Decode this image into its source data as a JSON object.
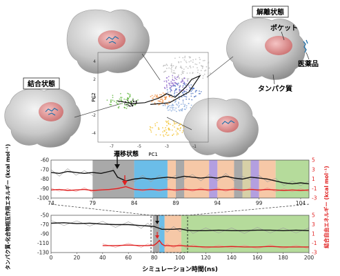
{
  "labels": {
    "bound_state": "結合状態",
    "dissociated_state": "解離状態",
    "pocket": "ポケット",
    "drug": "医薬品",
    "protein": "タンパク質",
    "transition_state": "遷移状態",
    "pc1": "PC1",
    "pc2": "PC2",
    "y_left": "タンパク質-化合物相互作用エネルギー (kcal mol⁻¹)",
    "y_right": "結合自由エネルギー (kcal mol⁻¹)",
    "x_label": "シミュレーション時間(ns)"
  },
  "colors": {
    "black_series": "#111111",
    "red_series": "#e02020",
    "gray_band": "#8c8c8c",
    "blue_band": "#3aa7e0",
    "orange_band": "#f3b58a",
    "purple_band": "#9a7fd6",
    "olive_band": "#c9c08a",
    "green_band": "#9ccf7a",
    "pocket": "#e8a0a0"
  },
  "chart_data": [
    {
      "type": "scatter",
      "name": "pca",
      "xlabel": "PC1",
      "ylabel": "PC2",
      "xticks": [
        "-7",
        "-5",
        "-3",
        "-1"
      ],
      "yticks": [
        "4",
        "2",
        "0",
        "-2",
        "-4"
      ],
      "xlim": [
        -8,
        0
      ],
      "ylim": [
        -5,
        5
      ]
    },
    {
      "type": "line",
      "name": "zoom-panel",
      "xlim": [
        74,
        105
      ],
      "xticks": [
        "74",
        "79",
        "84",
        "89",
        "94",
        "99",
        "104"
      ],
      "yticks_left": [
        "-60",
        "-70",
        "-80",
        "-90",
        "-100"
      ],
      "yticks_right": [
        "5",
        "3",
        "1",
        "-1",
        "-3"
      ],
      "ylim_left": [
        -100,
        -60
      ],
      "ylim_right": [
        -3,
        5
      ],
      "bands": [
        {
          "from": 79,
          "to": 84,
          "color": "gray"
        },
        {
          "from": 84,
          "to": 88,
          "color": "blue"
        },
        {
          "from": 88,
          "to": 89,
          "color": "orange"
        },
        {
          "from": 89,
          "to": 90,
          "color": "gray"
        },
        {
          "from": 90,
          "to": 93,
          "color": "orange"
        },
        {
          "from": 93,
          "to": 94,
          "color": "purple"
        },
        {
          "from": 94,
          "to": 96,
          "color": "orange"
        },
        {
          "from": 96,
          "to": 97,
          "color": "gray"
        },
        {
          "from": 97,
          "to": 98,
          "color": "olive"
        },
        {
          "from": 98,
          "to": 99,
          "color": "purple"
        },
        {
          "from": 99,
          "to": 101,
          "color": "orange"
        },
        {
          "from": 101,
          "to": 105,
          "color": "green"
        }
      ],
      "black_x": [
        74,
        75,
        76,
        77,
        78,
        79,
        80,
        81,
        81.5,
        82,
        83,
        84,
        85,
        86,
        87,
        88,
        89,
        90,
        91,
        92,
        93,
        94,
        95,
        96,
        97,
        98,
        99,
        100,
        101,
        102,
        103,
        104,
        105
      ],
      "black_y": [
        -73,
        -74,
        -72,
        -73,
        -74,
        -73,
        -74,
        -72,
        -71,
        -78,
        -82,
        -80,
        -79,
        -80,
        -79,
        -78,
        -79,
        -77,
        -78,
        -79,
        -78,
        -79,
        -77,
        -79,
        -80,
        -78,
        -79,
        -80,
        -82,
        -84,
        -85,
        -84,
        -85
      ],
      "red_x": [
        74,
        75,
        76,
        77,
        78,
        79,
        80,
        81,
        82,
        83,
        84,
        85,
        86,
        87,
        88,
        89,
        90,
        91,
        92,
        93,
        94,
        95,
        96,
        97,
        98,
        99,
        100,
        101,
        102,
        103,
        104,
        105
      ],
      "red_y": [
        -1.3,
        -1.2,
        -1.4,
        -1.3,
        -1.2,
        -1.4,
        -1.3,
        -1.2,
        -1.0,
        -0.6,
        -1.2,
        -1.3,
        -1.2,
        -1.3,
        -1.2,
        -1.3,
        -1.2,
        -1.3,
        -1.2,
        -1.3,
        -1.2,
        -1.3,
        -1.2,
        -1.3,
        -1.2,
        -1.3,
        -1.2,
        -1.3,
        -1.4,
        -1.3,
        -1.4,
        -1.3
      ]
    },
    {
      "type": "line",
      "name": "full-panel",
      "xlim": [
        0,
        200
      ],
      "xticks": [
        "0",
        "20",
        "40",
        "60",
        "80",
        "100",
        "120",
        "140",
        "160",
        "180",
        "200"
      ],
      "yticks_left": [
        "-50",
        "-70",
        "-90",
        "-110",
        "-130"
      ],
      "yticks_right": [
        "5",
        "3",
        "1",
        "-1",
        "-3"
      ],
      "ylim_left": [
        -130,
        -50
      ],
      "ylim_right": [
        -3,
        5
      ],
      "bands": [
        {
          "from": 79,
          "to": 84,
          "color": "gray"
        },
        {
          "from": 84,
          "to": 88,
          "color": "blue"
        },
        {
          "from": 88,
          "to": 101,
          "color": "orange"
        },
        {
          "from": 101,
          "to": 200,
          "color": "green"
        }
      ],
      "black_x": [
        0,
        10,
        20,
        30,
        40,
        50,
        60,
        70,
        75,
        80,
        82,
        84,
        86,
        90,
        95,
        100,
        105,
        110,
        120,
        130,
        140,
        150,
        160,
        170,
        180,
        190,
        200
      ],
      "black_y": [
        -67,
        -66,
        -68,
        -67,
        -69,
        -70,
        -70,
        -72,
        -73,
        -74,
        -76,
        -78,
        -80,
        -80,
        -80,
        -79,
        -82,
        -83,
        -83,
        -82,
        -83,
        -83,
        -82,
        -82,
        -83,
        -82,
        -83
      ],
      "red_x": [
        40,
        50,
        60,
        70,
        75,
        80,
        82,
        84,
        86,
        88,
        90,
        95,
        100,
        105,
        110,
        120,
        130,
        140,
        150,
        160,
        170,
        180,
        190,
        200
      ],
      "red_y": [
        -1.5,
        -1.5,
        -1.4,
        -1.5,
        -1.5,
        -1.4,
        -1.0,
        -0.4,
        -1.2,
        -1.5,
        -1.5,
        -1.6,
        -1.5,
        -1.6,
        -1.7,
        -1.8,
        -1.8,
        -1.7,
        -1.8,
        -1.8,
        -1.7,
        -1.8,
        -1.8,
        -1.8
      ]
    }
  ]
}
